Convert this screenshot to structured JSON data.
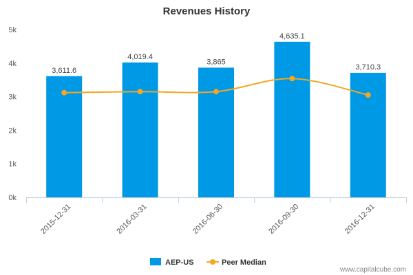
{
  "chart_data": {
    "type": "bar",
    "title": "Revenues History",
    "categories": [
      "2015-12-31",
      "2016-03-31",
      "2016-06-30",
      "2016-09-30",
      "2016-12-31"
    ],
    "series": [
      {
        "name": "AEP-US",
        "type": "bar",
        "color": "#0099e6",
        "values": [
          3611.6,
          4019.4,
          3865,
          4635.1,
          3710.3
        ],
        "labels": [
          "3,611.6",
          "4,019.4",
          "3,865",
          "4,635.1",
          "3,710.3"
        ]
      },
      {
        "name": "Peer Median",
        "type": "line",
        "color": "#f5a623",
        "values": [
          3120,
          3150,
          3150,
          3540,
          3050
        ]
      }
    ],
    "y_ticks": [
      {
        "value": 0,
        "label": "0k"
      },
      {
        "value": 1000,
        "label": "1k"
      },
      {
        "value": 2000,
        "label": "2k"
      },
      {
        "value": 3000,
        "label": "3k"
      },
      {
        "value": 4000,
        "label": "4k"
      },
      {
        "value": 5000,
        "label": "5k"
      }
    ],
    "ylim": [
      0,
      5000
    ],
    "xlabel": "",
    "ylabel": "",
    "grid": false,
    "legend_position": "bottom"
  },
  "credit": "www.capitalcube.com"
}
